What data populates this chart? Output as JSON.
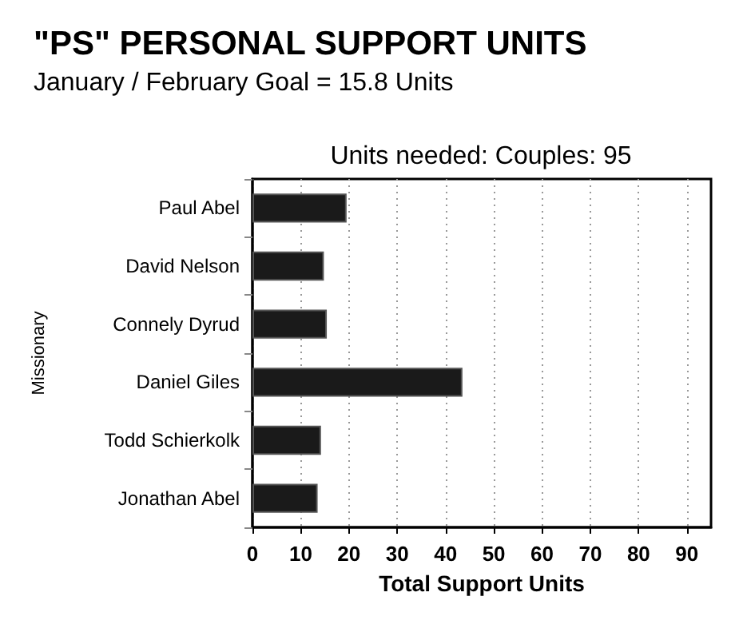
{
  "chart_data": {
    "type": "bar",
    "orientation": "horizontal",
    "title": "\"PS\" PERSONAL SUPPORT UNITS",
    "subtitle": "January / February Goal = 15.8 Units",
    "annotations": [
      "Units needed: Couples: 95"
    ],
    "categories": [
      "Paul Abel",
      "David Nelson",
      "Connely Dyrud",
      "Daniel Giles",
      "Todd Schierkolk",
      "Jonathan Abel"
    ],
    "values": [
      19.5,
      14.8,
      15.4,
      43.5,
      14.2,
      13.5
    ],
    "color": "#1a1a1a",
    "xlim": [
      0,
      95
    ],
    "xticks": [
      0,
      10,
      20,
      30,
      40,
      50,
      60,
      70,
      80,
      90
    ],
    "xlabel": "Total Support Units",
    "ylabel": "Missionary",
    "grid": "x"
  }
}
